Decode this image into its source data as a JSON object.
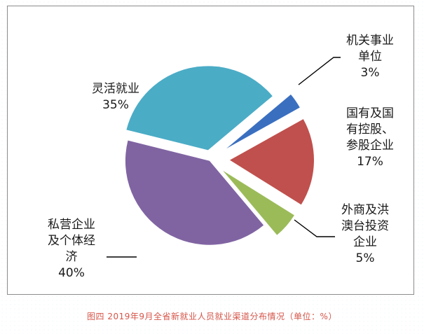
{
  "chart_data": {
    "type": "pie",
    "title": "",
    "slices": [
      {
        "label_lines": [
          "机关事业",
          "单位"
        ],
        "value": 3,
        "value_text": "3%",
        "color": "#3a6fc0"
      },
      {
        "label_lines": [
          "国有及国",
          "有控股、",
          "参股企业"
        ],
        "value": 17,
        "value_text": "17%",
        "color": "#c0504d"
      },
      {
        "label_lines": [
          "外商及洪",
          "澳台投资",
          "企业"
        ],
        "value": 5,
        "value_text": "5%",
        "color": "#9bbb59"
      },
      {
        "label_lines": [
          "私营企业",
          "及个体经",
          "济"
        ],
        "value": 40,
        "value_text": "40%",
        "color": "#8064a2"
      },
      {
        "label_lines": [
          "灵活就业"
        ],
        "value": 35,
        "value_text": "35%",
        "color": "#4bacc6"
      }
    ],
    "legend": "none",
    "exploded": true
  },
  "caption": "图四 2019年9月全省新就业人员就业渠道分布情况（单位：%）"
}
